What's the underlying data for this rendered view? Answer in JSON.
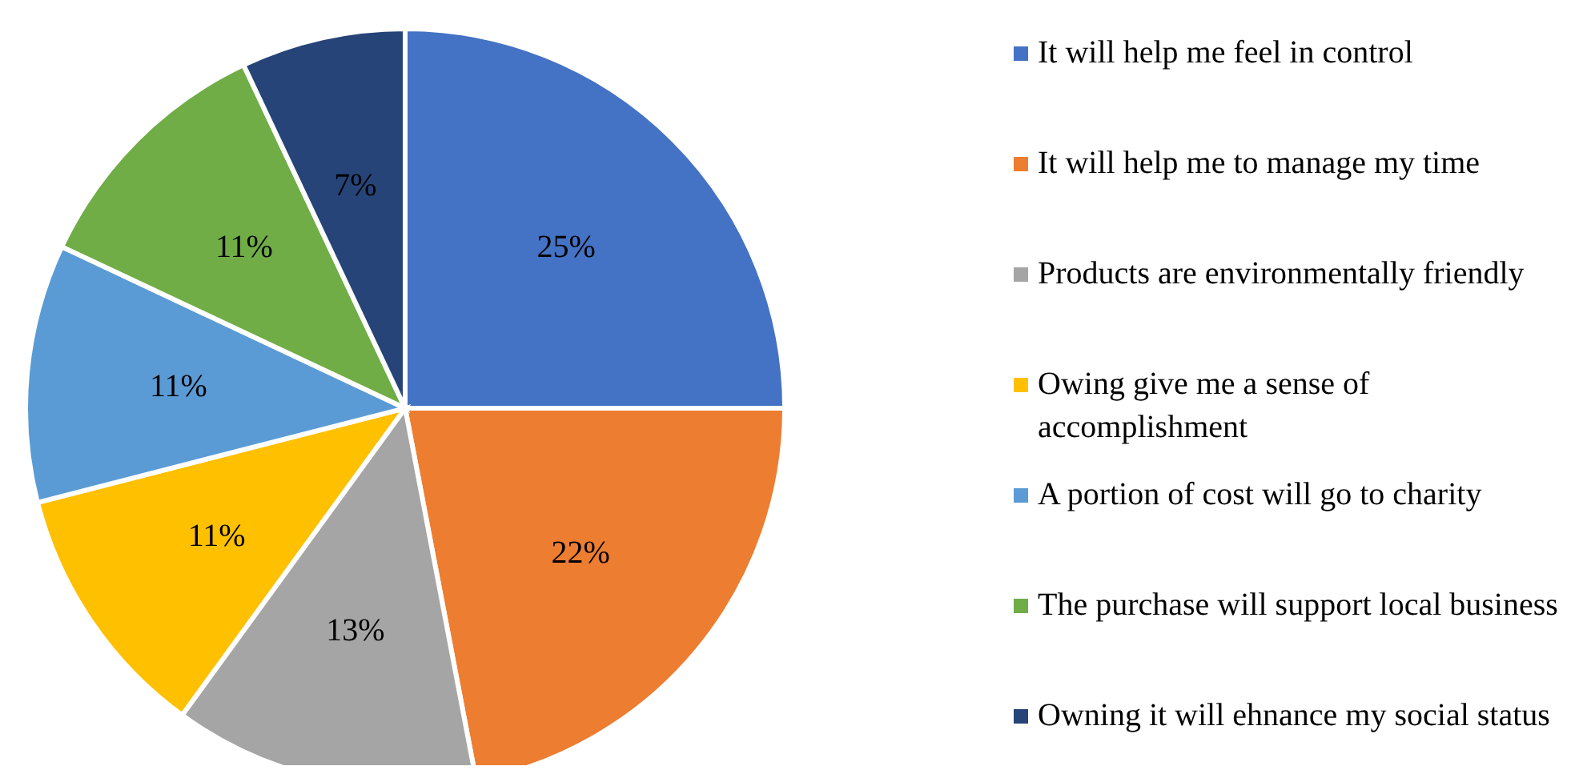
{
  "chart_data": {
    "type": "pie",
    "categories": [
      "It will help me feel in control",
      "It will help me to manage my time",
      "Products are environmentally friendly",
      "Owing give me a sense of accomplishment",
      "A portion of cost will go to charity",
      "The purchase will support local business",
      "Owning it will ehnance my social status"
    ],
    "values": [
      25,
      22,
      13,
      11,
      11,
      11,
      7
    ],
    "value_labels": [
      "25%",
      "22%",
      "13%",
      "11%",
      "11%",
      "11%",
      "7%"
    ],
    "colors": [
      "#4472c4",
      "#ed7d31",
      "#a5a5a5",
      "#ffc000",
      "#5b9bd5",
      "#70ad47",
      "#264478"
    ],
    "legend": "right"
  }
}
